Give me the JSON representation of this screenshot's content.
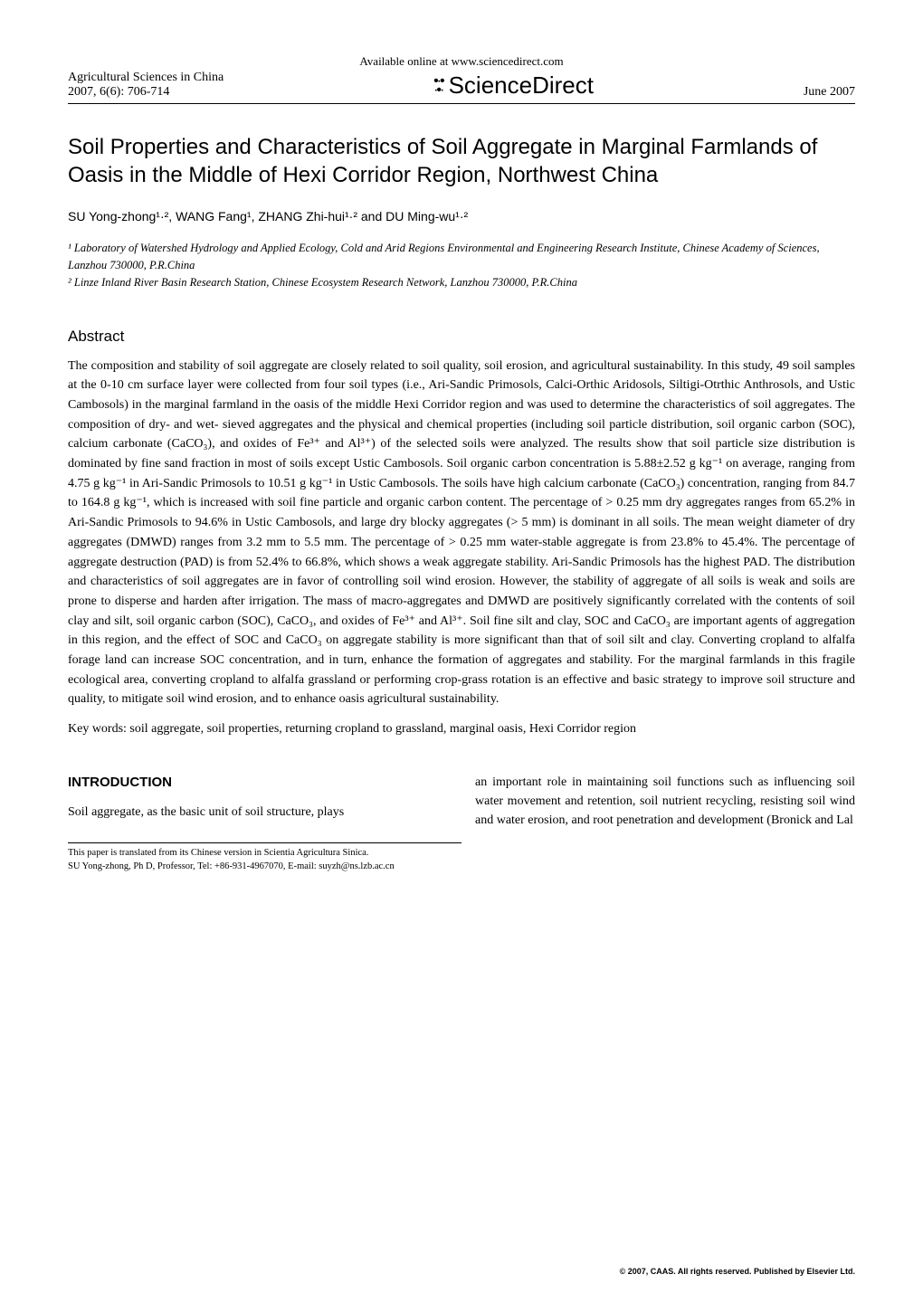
{
  "header": {
    "available": "Available online at www.sciencedirect.com",
    "journal": "Agricultural Sciences in China",
    "volume": "2007, 6(6): 706-714",
    "brand": "ScienceDirect",
    "date": "June 2007"
  },
  "title": "Soil Properties and Characteristics of Soil Aggregate in Marginal Farmlands of Oasis in the Middle of Hexi Corridor Region, Northwest China",
  "authors": "SU Yong-zhong¹·², WANG Fang¹, ZHANG Zhi-hui¹·² and DU Ming-wu¹·²",
  "affil1": "¹ Laboratory of Watershed Hydrology and Applied Ecology, Cold and Arid Regions Environmental and Engineering Research Institute, Chinese Academy of Sciences, Lanzhou 730000, P.R.China",
  "affil2": "² Linze Inland River Basin Research Station, Chinese Ecosystem Research Network, Lanzhou 730000, P.R.China",
  "absHead": "Abstract",
  "abstract": "The composition and stability of soil aggregate are closely related to soil quality, soil erosion, and agricultural sustainability. In this study, 49 soil samples at the 0-10 cm surface layer were collected from four soil types (i.e., Ari-Sandic Primosols, Calci-Orthic Aridosols, Siltigi-Otrthic Anthrosols, and Ustic Cambosols) in the marginal farmland in the oasis of the middle Hexi Corridor region and was used to determine the characteristics of soil aggregates. The composition of dry- and wet- sieved aggregates and the physical and chemical properties (including soil particle distribution, soil organic carbon (SOC), calcium carbonate (CaCO₃), and oxides of Fe³⁺ and Al³⁺) of the selected soils were analyzed. The results show that soil particle size distribution is dominated by fine sand fraction in most of soils except Ustic Cambosols. Soil organic carbon concentration is 5.88±2.52 g kg⁻¹ on average, ranging from 4.75 g kg⁻¹ in Ari-Sandic Primosols to 10.51 g kg⁻¹ in Ustic Cambosols. The soils have high calcium carbonate (CaCO₃) concentration, ranging from 84.7 to 164.8 g kg⁻¹, which is increased with soil fine particle and organic carbon content. The percentage of > 0.25 mm dry aggregates ranges from 65.2% in Ari-Sandic Primosols to 94.6% in Ustic Cambosols, and large dry blocky aggregates (> 5 mm) is dominant in all soils. The mean weight diameter of dry aggregates (DMWD) ranges from 3.2 mm to 5.5 mm. The percentage of > 0.25 mm water-stable aggregate is from 23.8% to 45.4%. The percentage of aggregate destruction (PAD) is from 52.4% to 66.8%, which shows a weak aggregate stability. Ari-Sandic Primosols has the highest PAD. The distribution and characteristics of soil aggregates are in favor of controlling soil wind erosion. However, the stability of aggregate of all soils is weak and soils are prone to disperse and harden after irrigation. The mass of macro-aggregates and DMWD are positively significantly correlated with the contents of soil clay and silt, soil organic carbon (SOC), CaCO₃, and oxides of Fe³⁺ and Al³⁺. Soil fine silt and clay, SOC and CaCO₃ are important agents of aggregation in this region, and the effect of SOC and CaCO₃ on aggregate stability is more significant than that of soil silt and clay. Converting cropland to alfalfa forage land can increase SOC concentration, and in turn, enhance the formation of aggregates and stability. For the marginal farmlands in this fragile ecological area, converting cropland to alfalfa grassland or performing crop-grass rotation is an effective and basic strategy to improve soil structure and quality, to mitigate soil wind erosion, and to enhance oasis agricultural sustainability.",
  "keywords": "Key words: soil aggregate, soil properties, returning cropland to grassland, marginal oasis, Hexi Corridor region",
  "introHead": "INTRODUCTION",
  "col1": "Soil aggregate, as the basic unit of soil structure, plays",
  "col2": "an important role in maintaining soil functions such as influencing soil water movement and retention, soil nutrient recycling, resisting soil wind and water erosion, and root penetration and development (Bronick and Lal",
  "footnote1": "This paper is translated from its Chinese version in Scientia Agricultura Sinica.",
  "footnote2": "SU Yong-zhong, Ph D, Professor, Tel: +86-931-4967070, E-mail: suyzh@ns.lzb.ac.cn",
  "copyright": "© 2007, CAAS. All rights reserved. Published by Elsevier Ltd."
}
